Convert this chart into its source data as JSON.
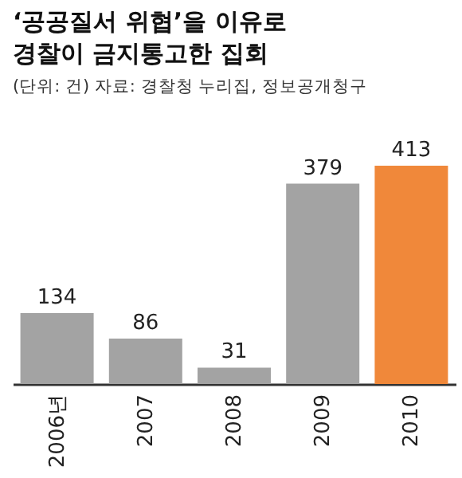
{
  "chart_data": {
    "type": "bar",
    "title": "‘공공질서 위협’을 이유로\n경찰이 금지통고한 집회",
    "subtitle": "(단위: 건) 자료: 경찰청 누리집, 정보공개청구",
    "categories": [
      "2006년",
      "2007",
      "2008",
      "2009",
      "2010"
    ],
    "values": [
      134,
      86,
      31,
      379,
      413
    ],
    "colors": [
      "#a3a3a3",
      "#a3a3a3",
      "#a3a3a3",
      "#a3a3a3",
      "#f0883a"
    ],
    "data_labels": true
  }
}
